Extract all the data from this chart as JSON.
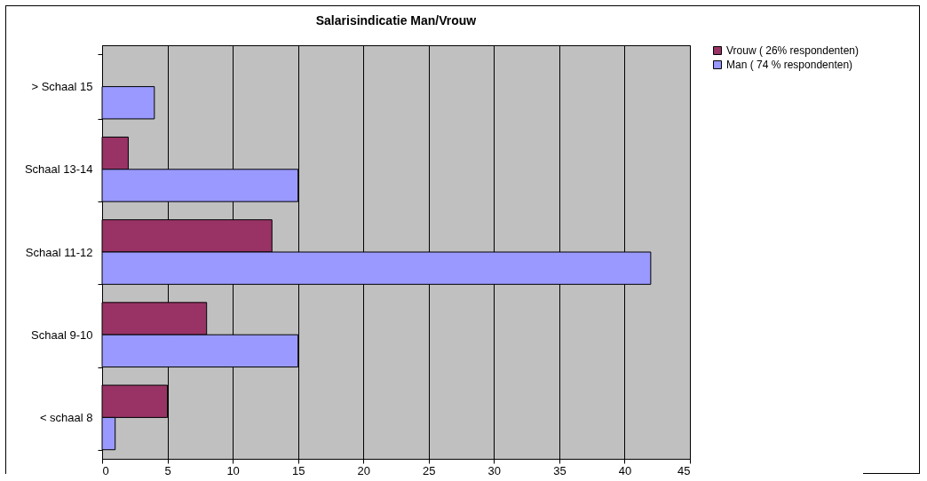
{
  "chart_data": {
    "type": "bar",
    "orientation": "horizontal",
    "title": "Salarisindicatie Man/Vrouw",
    "categories": [
      "> Schaal 15",
      "Schaal 13-14",
      "Schaal 11-12",
      "Schaal 9-10",
      "< schaal 8"
    ],
    "series": [
      {
        "name": "Vrouw ( 26% respondenten)",
        "color": "#993366",
        "values": [
          null,
          2,
          13,
          8,
          5
        ]
      },
      {
        "name": "Man ( 74 % respondenten)",
        "color": "#9999ff",
        "values": [
          4,
          15,
          42,
          15,
          1
        ]
      }
    ],
    "xlim": [
      0,
      45
    ],
    "xticks": [
      0,
      5,
      10,
      15,
      20,
      25,
      30,
      35,
      40,
      45
    ],
    "grid": "x",
    "legend": "right"
  }
}
